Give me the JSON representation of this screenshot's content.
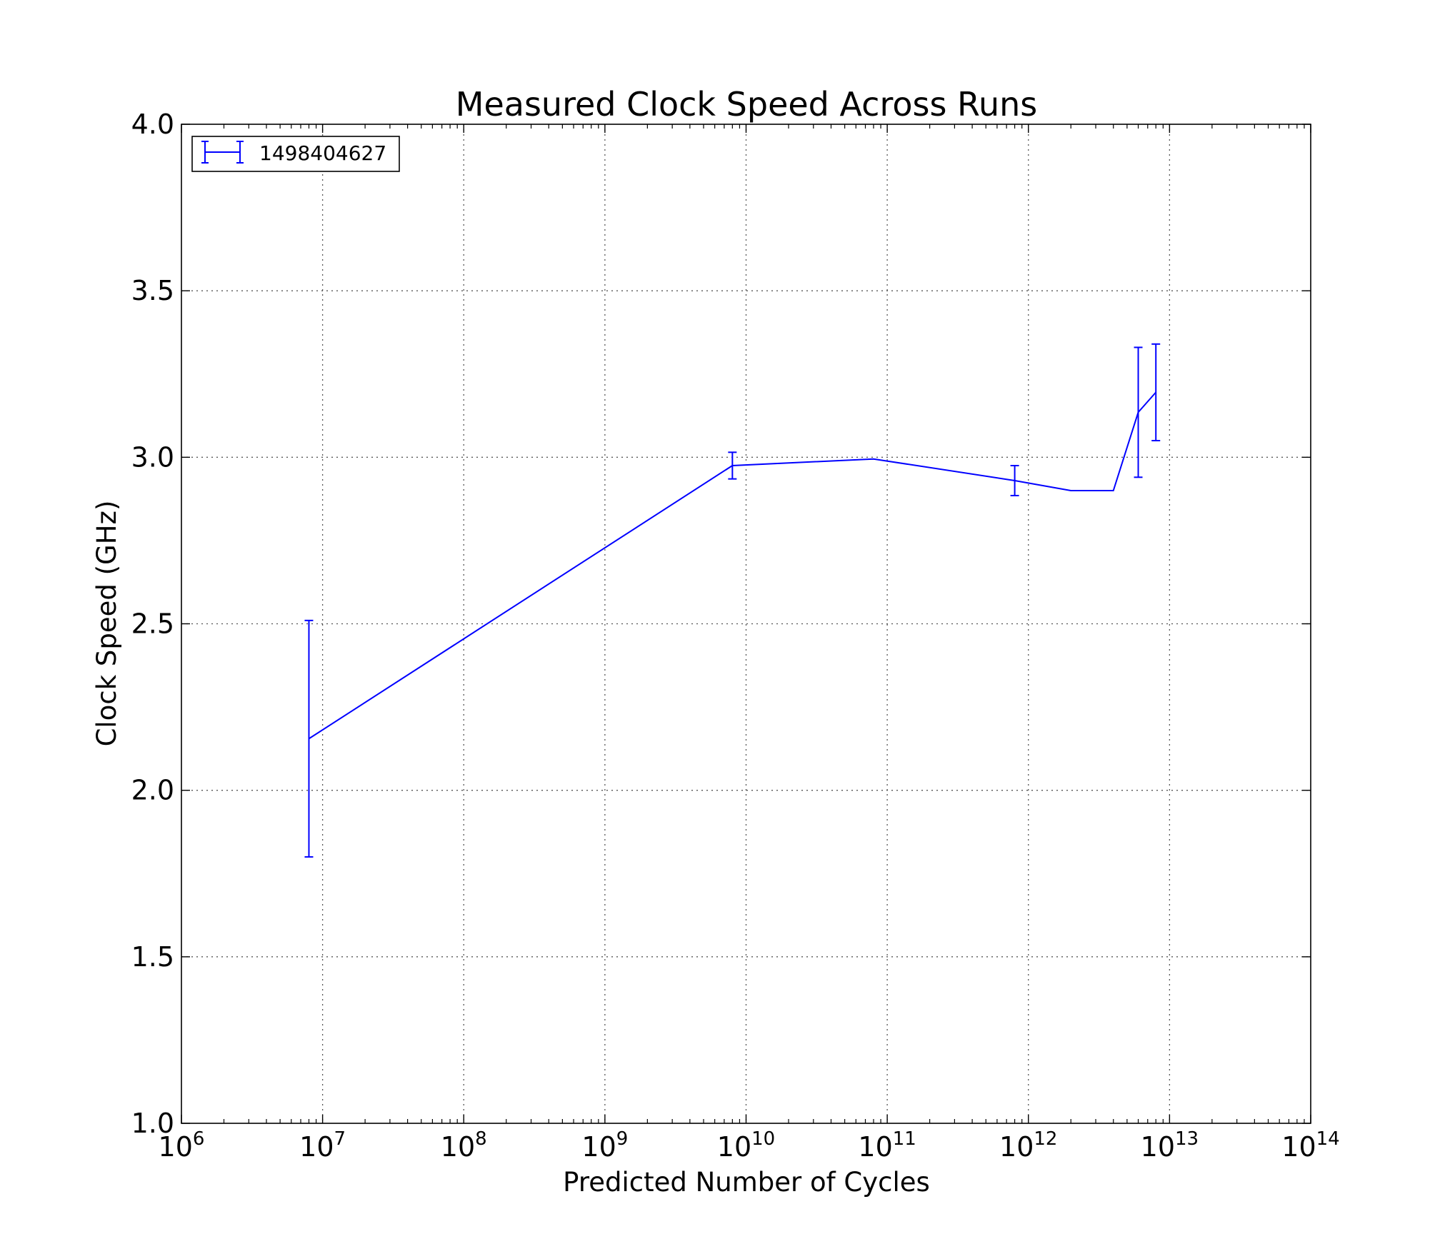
{
  "chart_data": {
    "type": "line",
    "title": "Measured Clock Speed Across Runs",
    "xlabel": "Predicted Number of Cycles",
    "ylabel": "Clock Speed (GHz)",
    "x_scale": "log",
    "xlim": [
      1000000,
      100000000000000
    ],
    "ylim": [
      1.0,
      4.0
    ],
    "grid": true,
    "legend_position": "top-left",
    "x_ticks": [
      {
        "base": "10",
        "exp": "6"
      },
      {
        "base": "10",
        "exp": "7"
      },
      {
        "base": "10",
        "exp": "8"
      },
      {
        "base": "10",
        "exp": "9"
      },
      {
        "base": "10",
        "exp": "10"
      },
      {
        "base": "10",
        "exp": "11"
      },
      {
        "base": "10",
        "exp": "12"
      },
      {
        "base": "10",
        "exp": "13"
      },
      {
        "base": "10",
        "exp": "14"
      }
    ],
    "y_ticks": [
      "1.0",
      "1.5",
      "2.0",
      "2.5",
      "3.0",
      "3.5",
      "4.0"
    ],
    "series": [
      {
        "name": "1498404627",
        "color": "#0000ff",
        "points": [
          {
            "x": 8000000,
            "y": 2.155,
            "yerr_low": 1.8,
            "yerr_high": 2.51
          },
          {
            "x": 8000000000,
            "y": 2.975,
            "yerr_low": 2.935,
            "yerr_high": 3.015
          },
          {
            "x": 80000000000,
            "y": 2.995
          },
          {
            "x": 800000000000,
            "y": 2.93,
            "yerr_low": 2.885,
            "yerr_high": 2.975
          },
          {
            "x": 2000000000000,
            "y": 2.9
          },
          {
            "x": 4000000000000,
            "y": 2.9
          },
          {
            "x": 6000000000000,
            "y": 3.135,
            "yerr_low": 2.94,
            "yerr_high": 3.33
          },
          {
            "x": 8000000000000,
            "y": 3.195,
            "yerr_low": 3.05,
            "yerr_high": 3.34
          }
        ]
      }
    ]
  }
}
